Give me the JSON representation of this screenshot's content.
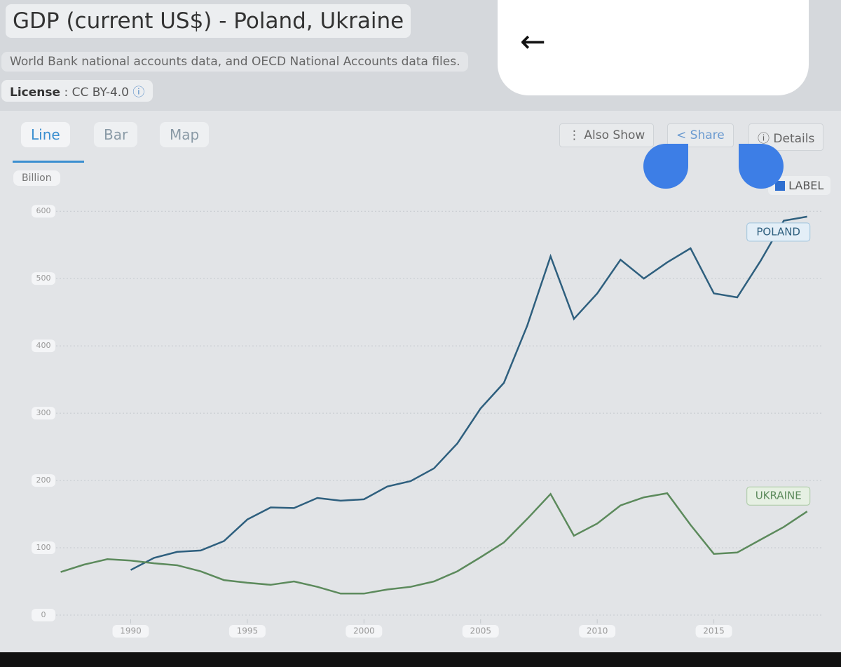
{
  "header": {
    "title": "GDP (current US$) - Poland, Ukraine",
    "subtitle": "World Bank national accounts data, and OECD National Accounts data files.",
    "license_label": "License",
    "license_value": ": CC BY-4.0"
  },
  "tabs": [
    "Line",
    "Bar",
    "Map"
  ],
  "buttons": [
    "Also Show",
    "Share",
    "Details"
  ],
  "label_toggle": "LABEL",
  "chart_data": {
    "type": "line",
    "unit": "Billion",
    "x": [
      1987,
      1988,
      1989,
      1990,
      1991,
      1992,
      1993,
      1994,
      1995,
      1996,
      1997,
      1998,
      1999,
      2000,
      2001,
      2002,
      2003,
      2004,
      2005,
      2006,
      2007,
      2008,
      2009,
      2010,
      2011,
      2012,
      2013,
      2014,
      2015,
      2016,
      2017,
      2018,
      2019
    ],
    "series": [
      {
        "name": "POLAND",
        "color": "#2e5f7e",
        "values": [
          null,
          null,
          null,
          67,
          85,
          94,
          96,
          110,
          142,
          160,
          159,
          174,
          170,
          172,
          191,
          199,
          218,
          255,
          307,
          345,
          430,
          533,
          440,
          478,
          528,
          500,
          524,
          545,
          478,
          472,
          526,
          586,
          592
        ]
      },
      {
        "name": "UKRAINE",
        "color": "#5c8a5c",
        "values": [
          64,
          75,
          83,
          81,
          77,
          74,
          65,
          52,
          48,
          45,
          50,
          42,
          32,
          32,
          38,
          42,
          50,
          65,
          86,
          108,
          143,
          180,
          118,
          136,
          163,
          175,
          181,
          134,
          91,
          93,
          112,
          131,
          154
        ]
      }
    ],
    "xlim": [
      1986.5,
      2019.7
    ],
    "xticks": [
      1990,
      1995,
      2000,
      2005,
      2010,
      2015
    ],
    "ylim": [
      0,
      620
    ],
    "yticks": [
      0,
      100,
      200,
      300,
      400,
      500,
      600
    ],
    "grid": true
  }
}
